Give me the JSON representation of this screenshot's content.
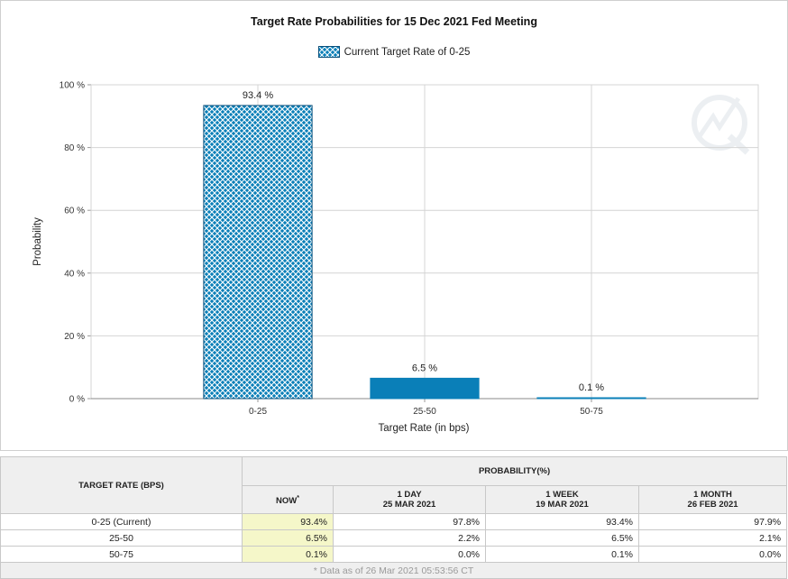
{
  "chart_data": {
    "type": "bar",
    "title": "Target Rate Probabilities for 15 Dec 2021 Fed Meeting",
    "legend": "Current Target Rate of 0-25",
    "xlabel": "Target Rate (in bps)",
    "ylabel": "Probability",
    "categories": [
      "0-25",
      "25-50",
      "50-75"
    ],
    "values": [
      93.4,
      6.5,
      0.1
    ],
    "data_labels": [
      "93.4 %",
      "6.5 %",
      "0.1 %"
    ],
    "ylim": [
      0,
      100
    ],
    "yticks": [
      0,
      20,
      40,
      60,
      80,
      100
    ],
    "ytick_labels": [
      "0 %",
      "20 %",
      "40 %",
      "60 %",
      "80 %",
      "100 %"
    ],
    "grid": true,
    "colors": {
      "current": "#0a7fb8",
      "other": "#0a7fb8",
      "border": "#0b4f7a"
    }
  },
  "table": {
    "target_header": "TARGET RATE (BPS)",
    "prob_header": "PROBABILITY(%)",
    "columns": [
      {
        "line1": "NOW",
        "line2": "",
        "star": "*"
      },
      {
        "line1": "1 DAY",
        "line2": "25 MAR 2021",
        "star": ""
      },
      {
        "line1": "1 WEEK",
        "line2": "19 MAR 2021",
        "star": ""
      },
      {
        "line1": "1 MONTH",
        "line2": "26 FEB 2021",
        "star": ""
      }
    ],
    "rows": [
      {
        "rate": "0-25 (Current)",
        "now": "93.4%",
        "day": "97.8%",
        "week": "93.4%",
        "month": "97.9%"
      },
      {
        "rate": "25-50",
        "now": "6.5%",
        "day": "2.2%",
        "week": "6.5%",
        "month": "2.1%"
      },
      {
        "rate": "50-75",
        "now": "0.1%",
        "day": "0.0%",
        "week": "0.1%",
        "month": "0.0%"
      }
    ],
    "footnote": "* Data as of 26 Mar 2021 05:53:56 CT"
  }
}
